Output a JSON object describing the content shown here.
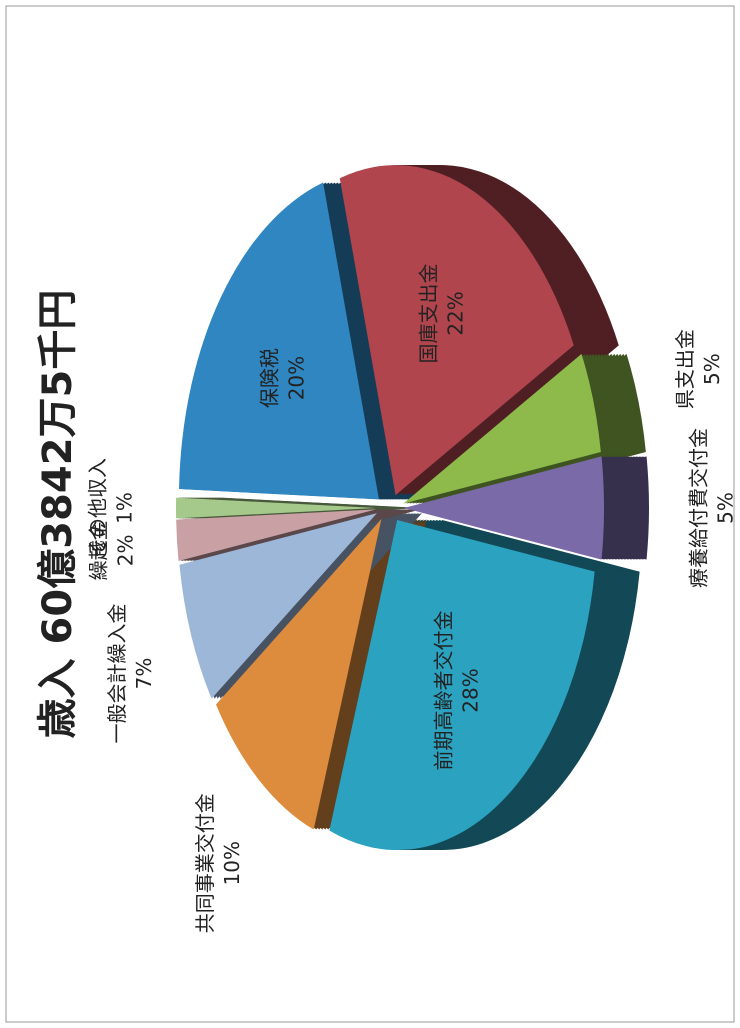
{
  "chart_data": {
    "type": "pie",
    "title": "歳入 60億3842万5千円",
    "categories": [
      "その他収入",
      "保険税",
      "国庫支出金",
      "県支出金",
      "療養給付費交付金",
      "前期高齢者交付金",
      "共同事業交付金",
      "一般会計繰入金",
      "繰越金"
    ],
    "values": [
      1,
      20,
      22,
      5,
      5,
      28,
      10,
      7,
      2
    ],
    "value_labels": [
      "1%",
      "20%",
      "22%",
      "5%",
      "5%",
      "28%",
      "10%",
      "7%",
      "2%"
    ],
    "colors": [
      "#a5c98a",
      "#2f86c0",
      "#b0454e",
      "#8dba4a",
      "#7b6aa8",
      "#2aa2c0",
      "#dd8c3e",
      "#9db7d9",
      "#c9a0a4"
    ]
  }
}
